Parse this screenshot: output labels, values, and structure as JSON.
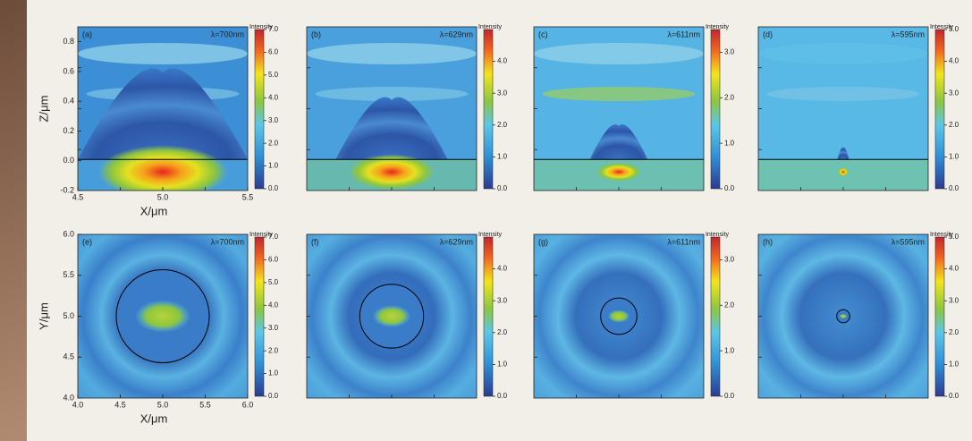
{
  "chart_data": [
    {
      "type": "heatmap",
      "panel_label": "(a)",
      "wavelength": "λ=700nm",
      "xlabel": "X/μm",
      "ylabel": "Z/μm",
      "xlim": [
        4.5,
        5.5
      ],
      "xticks": [
        4.5,
        {
          "value": 5,
          "label": "5.0"
        },
        5.5
      ],
      "ylim": [
        -0.2,
        0.9
      ],
      "yticks": [
        -0.2,
        {
          "value": 0,
          "label": "0.0"
        },
        0.2,
        0.4,
        0.6,
        0.8
      ],
      "colorbar_title": "Intensity",
      "clim": [
        0,
        7
      ],
      "cticks": [
        {
          "value": 0,
          "label": "0.0"
        },
        {
          "value": 1,
          "label": "1.0"
        },
        {
          "value": 2,
          "label": "2.0"
        },
        {
          "value": 3,
          "label": "3.0"
        },
        {
          "value": 4,
          "label": "4.0"
        },
        {
          "value": 5,
          "label": "5.0"
        },
        {
          "value": 6,
          "label": "6.0"
        },
        {
          "value": 7,
          "label": "7.0"
        }
      ]
    },
    {
      "type": "heatmap",
      "panel_label": "(b)",
      "wavelength": "λ=629nm",
      "colorbar_title": "Intensity",
      "clim": [
        0,
        5
      ],
      "cticks": [
        {
          "value": 0,
          "label": "0.0"
        },
        {
          "value": 1,
          "label": "1.0"
        },
        {
          "value": 2,
          "label": "2.0"
        },
        {
          "value": 3,
          "label": "3.0"
        },
        {
          "value": 4,
          "label": "4.0"
        }
      ]
    },
    {
      "type": "heatmap",
      "panel_label": "(c)",
      "wavelength": "λ=611nm",
      "colorbar_title": "Intensity",
      "clim": [
        0,
        3.5
      ],
      "cticks": [
        {
          "value": 0,
          "label": "0.0"
        },
        {
          "value": 1,
          "label": "1.0"
        },
        {
          "value": 2,
          "label": "2.0"
        },
        {
          "value": 3,
          "label": "3.0"
        }
      ]
    },
    {
      "type": "heatmap",
      "panel_label": "(d)",
      "wavelength": "λ=595nm",
      "colorbar_title": "Intensity",
      "clim": [
        0,
        5
      ],
      "cticks": [
        {
          "value": 0,
          "label": "0.0"
        },
        {
          "value": 1,
          "label": "1.0"
        },
        {
          "value": 2,
          "label": "2.0"
        },
        {
          "value": 3,
          "label": "3.0"
        },
        {
          "value": 4,
          "label": "4.0"
        },
        {
          "value": 5,
          "label": "5.0"
        }
      ]
    },
    {
      "type": "heatmap",
      "panel_label": "(e)",
      "wavelength": "λ=700nm",
      "xlabel": "X/μm",
      "ylabel": "Y/μm",
      "xlim": [
        4,
        6
      ],
      "xticks": [
        {
          "value": 4,
          "label": "4.0"
        },
        4.5,
        {
          "value": 5,
          "label": "5.0"
        },
        5.5,
        {
          "value": 6,
          "label": "6.0"
        }
      ],
      "ylim": [
        4,
        6
      ],
      "yticks": [
        {
          "value": 4,
          "label": "4.0"
        },
        4.5,
        {
          "value": 5,
          "label": "5.0"
        },
        5.5,
        {
          "value": 6,
          "label": "6.0"
        }
      ],
      "colorbar_title": "Intensity",
      "clim": [
        0,
        7
      ],
      "cticks": [
        {
          "value": 0,
          "label": "0.0"
        },
        {
          "value": 1,
          "label": "1.0"
        },
        {
          "value": 2,
          "label": "2.0"
        },
        {
          "value": 3,
          "label": "3.0"
        },
        {
          "value": 4,
          "label": "4.0"
        },
        {
          "value": 5,
          "label": "5.0"
        },
        {
          "value": 6,
          "label": "6.0"
        },
        {
          "value": 7,
          "label": "7.0"
        }
      ]
    },
    {
      "type": "heatmap",
      "panel_label": "(f)",
      "wavelength": "λ=629nm",
      "colorbar_title": "Intensity",
      "clim": [
        0,
        5
      ],
      "cticks": [
        {
          "value": 0,
          "label": "0.0"
        },
        {
          "value": 1,
          "label": "1.0"
        },
        {
          "value": 2,
          "label": "2.0"
        },
        {
          "value": 3,
          "label": "3.0"
        },
        {
          "value": 4,
          "label": "4.0"
        }
      ]
    },
    {
      "type": "heatmap",
      "panel_label": "(g)",
      "wavelength": "λ=611nm",
      "colorbar_title": "Intensity",
      "clim": [
        0,
        3.5
      ],
      "cticks": [
        {
          "value": 0,
          "label": "0.0"
        },
        {
          "value": 1,
          "label": "1.0"
        },
        {
          "value": 2,
          "label": "2.0"
        },
        {
          "value": 3,
          "label": "3.0"
        }
      ]
    },
    {
      "type": "heatmap",
      "panel_label": "(h)",
      "wavelength": "λ=595nm",
      "colorbar_title": "Intensity",
      "clim": [
        0,
        5
      ],
      "cticks": [
        {
          "value": 0,
          "label": "0.0"
        },
        {
          "value": 1,
          "label": "1.0"
        },
        {
          "value": 2,
          "label": "2.0"
        },
        {
          "value": 3,
          "label": "3.0"
        },
        {
          "value": 4,
          "label": "4.0"
        },
        {
          "value": 5,
          "label": "5.0"
        }
      ]
    }
  ]
}
